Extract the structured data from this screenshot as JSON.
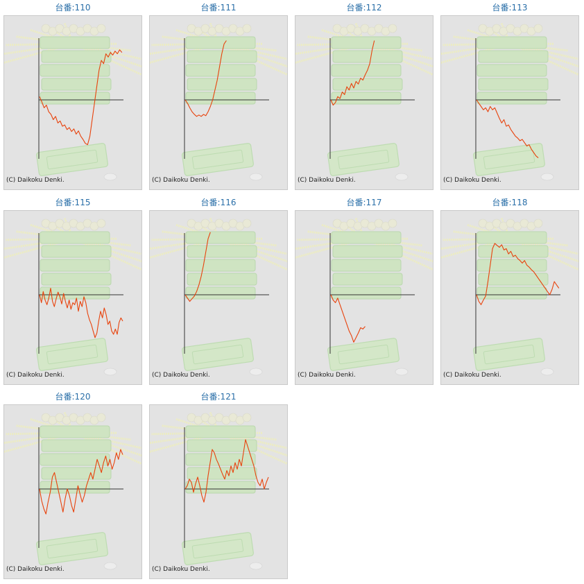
{
  "colors": {
    "line": "#e8420c",
    "axis": "#333333",
    "title": "#2a6fa8",
    "background": "#e3e3e3"
  },
  "chart_data": [
    {
      "type": "line",
      "title": "台番:110",
      "credit": "(C) Daikoku Denki.",
      "values": [
        5,
        -3,
        -12,
        -8,
        -18,
        -22,
        -30,
        -25,
        -35,
        -32,
        -40,
        -38,
        -45,
        -42,
        -48,
        -44,
        -52,
        -47,
        -55,
        -60,
        -66,
        -68,
        -55,
        -30,
        -5,
        20,
        45,
        60,
        55,
        70,
        65,
        72,
        68,
        74,
        70,
        76,
        72
      ]
    },
    {
      "type": "line",
      "title": "台番:111",
      "credit": "(C) Daikoku Denki.",
      "values": [
        0,
        -5,
        -12,
        -18,
        -22,
        -25,
        -23,
        -25,
        -22,
        -24,
        -18,
        -10,
        0,
        15,
        30,
        50,
        70,
        85,
        90
      ]
    },
    {
      "type": "line",
      "title": "台番:112",
      "credit": "(C) Daikoku Denki.",
      "values": [
        0,
        -8,
        -4,
        5,
        2,
        12,
        8,
        20,
        15,
        25,
        18,
        28,
        24,
        33,
        30,
        38,
        45,
        55,
        75,
        90
      ]
    },
    {
      "type": "line",
      "title": "台番:113",
      "credit": "(C) Daikoku Denki.",
      "values": [
        0,
        -5,
        -10,
        -15,
        -12,
        -18,
        -10,
        -15,
        -12,
        -20,
        -28,
        -35,
        -30,
        -40,
        -38,
        -45,
        -50,
        -55,
        -58,
        -62,
        -60,
        -65,
        -70,
        -68,
        -75,
        -80,
        -85,
        -88
      ]
    },
    {
      "type": "line",
      "title": "台番:115",
      "credit": "(C) Daikoku Denki.",
      "values": [
        0,
        -12,
        5,
        -8,
        -15,
        -5,
        10,
        -10,
        -18,
        -6,
        4,
        -3,
        -14,
        2,
        -10,
        -20,
        -8,
        -22,
        -12,
        -15,
        -5,
        -25,
        -10,
        -18,
        -3,
        -12,
        -28,
        -38,
        -45,
        -55,
        -65,
        -58,
        -40,
        -25,
        -35,
        -20,
        -30,
        -45,
        -40,
        -55,
        -60,
        -52,
        -60,
        -42,
        -35,
        -40
      ]
    },
    {
      "type": "line",
      "title": "台番:116",
      "credit": "(C) Daikoku Denki.",
      "values": [
        0,
        -5,
        -10,
        -6,
        -2,
        5,
        15,
        28,
        45,
        65,
        85,
        95
      ]
    },
    {
      "type": "line",
      "title": "台番:117",
      "credit": "(C) Daikoku Denki.",
      "values": [
        0,
        -8,
        -12,
        -5,
        -15,
        -25,
        -35,
        -45,
        -55,
        -62,
        -72,
        -65,
        -58,
        -50,
        -52,
        -48
      ]
    },
    {
      "type": "line",
      "title": "台番:118",
      "credit": "(C) Daikoku Denki.",
      "values": [
        0,
        -10,
        -15,
        -8,
        -2,
        20,
        45,
        70,
        78,
        75,
        72,
        76,
        68,
        70,
        62,
        66,
        58,
        60,
        55,
        52,
        48,
        52,
        45,
        42,
        38,
        35,
        30,
        25,
        20,
        15,
        10,
        5,
        0,
        8,
        20,
        15,
        10
      ]
    },
    {
      "type": "line",
      "title": "台番:120",
      "credit": "(C) Daikoku Denki.",
      "values": [
        0,
        -18,
        -30,
        -38,
        -20,
        -5,
        18,
        25,
        10,
        -5,
        -20,
        -35,
        -15,
        0,
        -10,
        -25,
        -35,
        -15,
        5,
        -8,
        -20,
        -10,
        5,
        15,
        25,
        15,
        30,
        45,
        35,
        25,
        40,
        50,
        35,
        45,
        30,
        40,
        55,
        45,
        60,
        52
      ]
    },
    {
      "type": "line",
      "title": "台番:121",
      "credit": "(C) Daikoku Denki.",
      "values": [
        0,
        5,
        15,
        10,
        -5,
        8,
        18,
        5,
        -10,
        -20,
        -5,
        20,
        40,
        60,
        55,
        45,
        38,
        30,
        22,
        15,
        28,
        20,
        35,
        25,
        40,
        30,
        45,
        35,
        55,
        75,
        65,
        55,
        45,
        35,
        20,
        10,
        5,
        15,
        0,
        10,
        18
      ]
    }
  ]
}
